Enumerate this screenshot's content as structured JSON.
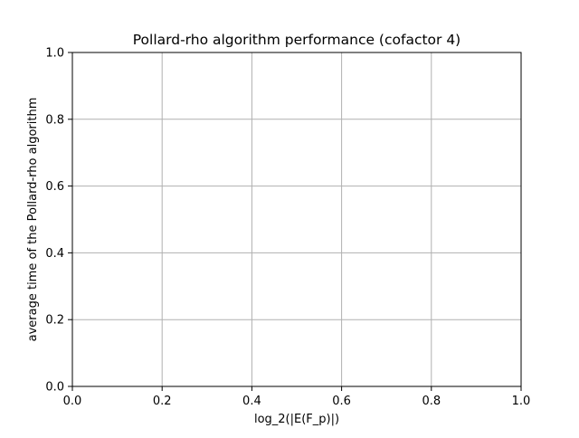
{
  "chart_data": {
    "type": "line",
    "title": "Pollard-rho algorithm performance (cofactor 4)",
    "xlabel": "log_2(|E(F_p)|)",
    "ylabel": "average time of the Pollard-rho algorithm",
    "xlim": [
      0.0,
      1.0
    ],
    "ylim": [
      0.0,
      1.0
    ],
    "xticks": [
      0.0,
      0.2,
      0.4,
      0.6,
      0.8,
      1.0
    ],
    "yticks": [
      0.0,
      0.2,
      0.4,
      0.6,
      0.8,
      1.0
    ],
    "xtick_labels": [
      "0.0",
      "0.2",
      "0.4",
      "0.6",
      "0.8",
      "1.0"
    ],
    "ytick_labels": [
      "0.0",
      "0.2",
      "0.4",
      "0.6",
      "0.8",
      "1.0"
    ],
    "grid": true,
    "series": []
  },
  "colors": {
    "grid": "#b0b0b0",
    "axes": "#000000",
    "background": "#ffffff"
  }
}
